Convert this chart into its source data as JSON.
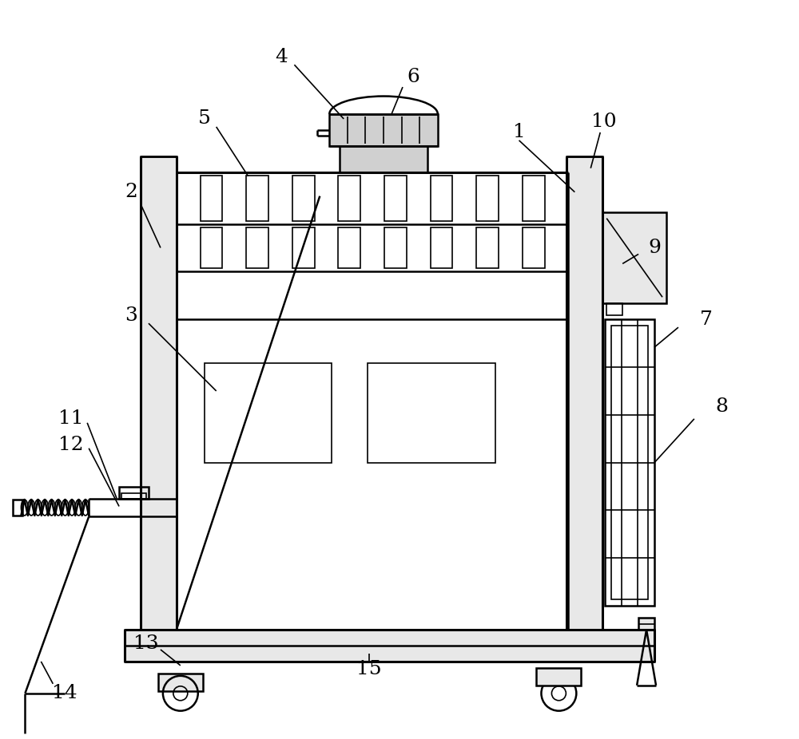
{
  "bg_color": "#ffffff",
  "line_color": "#000000",
  "lw": 1.8,
  "lw_thin": 1.2,
  "lw_thick": 2.2,
  "gray_light": "#e8e8e8",
  "gray_mid": "#d0d0d0",
  "gray_dark": "#b0b0b0",
  "font_size": 18
}
